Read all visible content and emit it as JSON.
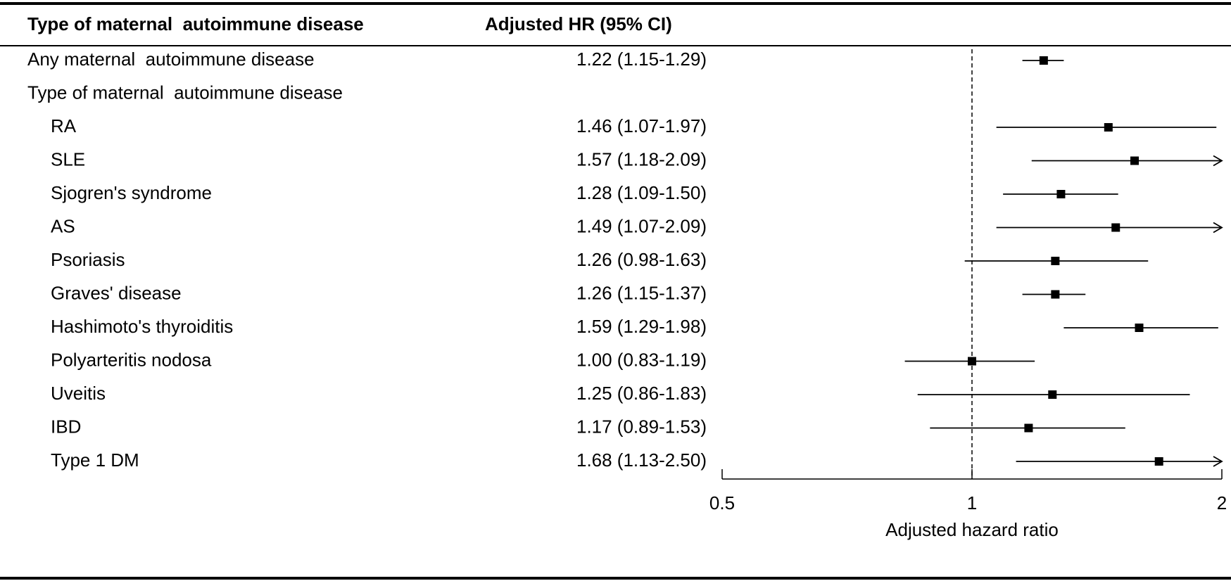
{
  "chart_data": {
    "type": "forest",
    "headers": [
      "Type of maternal  autoimmune disease",
      "Adjusted HR (95% CI)"
    ],
    "categories": [
      "Any maternal  autoimmune disease",
      "Type of maternal  autoimmune disease",
      "RA",
      "SLE",
      "Sjogren's syndrome",
      "AS",
      "Psoriasis",
      "Graves' disease",
      "Hashimoto's thyroiditis",
      "Polyarteritis nodosa",
      "Uveitis",
      "IBD",
      "Type 1 DM"
    ],
    "values": [
      1.22,
      null,
      1.46,
      1.57,
      1.28,
      1.49,
      1.26,
      1.26,
      1.59,
      1.0,
      1.25,
      1.17,
      1.68
    ],
    "lower": [
      1.15,
      null,
      1.07,
      1.18,
      1.09,
      1.07,
      0.98,
      1.15,
      1.29,
      0.83,
      0.86,
      0.89,
      1.13
    ],
    "upper": [
      1.29,
      null,
      1.97,
      2.09,
      1.5,
      2.09,
      1.63,
      1.37,
      1.98,
      1.19,
      1.83,
      1.53,
      2.5
    ],
    "value_labels": [
      "1.22 (1.15-1.29)",
      null,
      "1.46 (1.07-1.97)",
      "1.57 (1.18-2.09)",
      "1.28 (1.09-1.50)",
      "1.49 (1.07-2.09)",
      "1.26 (0.98-1.63)",
      "1.26 (1.15-1.37)",
      "1.59 (1.29-1.98)",
      "1.00 (0.83-1.19)",
      "1.25 (0.86-1.83)",
      "1.17 (0.89-1.53)",
      "1.68 (1.13-2.50)"
    ],
    "xlabel": "Adjusted hazard ratio",
    "xscale": "log",
    "xlim": [
      0.5,
      2
    ],
    "xticks": [
      0.5,
      1,
      2
    ],
    "reference": 1,
    "color": "#000000"
  }
}
